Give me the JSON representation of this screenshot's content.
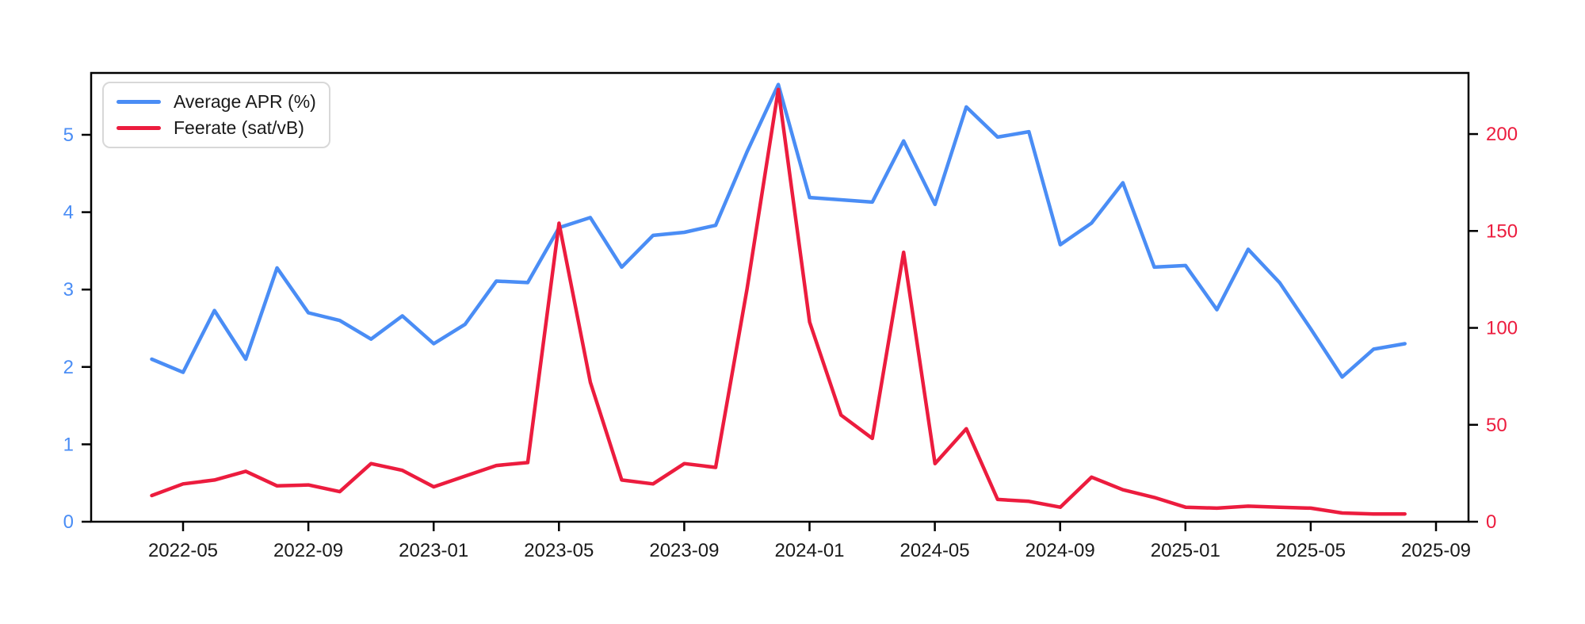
{
  "figure": {
    "background": "#ffffff",
    "legend": {
      "items": [
        {
          "label": "Average APR (%)",
          "color": "#4a8df5"
        },
        {
          "label": "Feerate (sat/vB)",
          "color": "#ec1c3e"
        }
      ]
    },
    "axes": {
      "x": {
        "tick_labels": [
          "2022-05",
          "2022-09",
          "2023-01",
          "2023-05",
          "2023-09",
          "2024-01",
          "2024-05",
          "2024-09",
          "2025-01",
          "2025-05",
          "2025-09"
        ],
        "label_color": "#1a1a1a"
      },
      "y_left": {
        "tick_labels": [
          "0",
          "1",
          "2",
          "3",
          "4",
          "5"
        ],
        "label_color": "#4a8df5",
        "lim": [
          0,
          5.8
        ]
      },
      "y_right": {
        "tick_labels": [
          "0",
          "50",
          "100",
          "150",
          "200"
        ],
        "label_color": "#ec1c3e",
        "lim": [
          0,
          231
        ]
      }
    }
  },
  "chart_data": {
    "type": "line",
    "title": "",
    "xlabel": "",
    "ylabel_left": "Average APR (%)",
    "ylabel_right": "Feerate (sat/vB)",
    "grid": false,
    "legend_position": "upper left",
    "x": [
      "2022-04",
      "2022-05",
      "2022-06",
      "2022-07",
      "2022-08",
      "2022-09",
      "2022-10",
      "2022-11",
      "2022-12",
      "2023-01",
      "2023-02",
      "2023-03",
      "2023-04",
      "2023-05",
      "2023-06",
      "2023-07",
      "2023-08",
      "2023-09",
      "2023-10",
      "2023-11",
      "2023-12",
      "2024-01",
      "2024-02",
      "2024-03",
      "2024-04",
      "2024-05",
      "2024-06",
      "2024-07",
      "2024-08",
      "2024-09",
      "2024-10",
      "2024-11",
      "2024-12",
      "2025-01",
      "2025-02",
      "2025-03",
      "2025-04",
      "2025-05",
      "2025-06",
      "2025-07",
      "2025-08"
    ],
    "series": [
      {
        "name": "Average APR (%)",
        "axis": "left",
        "color": "#4a8df5",
        "values": [
          2.1,
          1.93,
          2.73,
          2.1,
          3.28,
          2.7,
          2.6,
          2.36,
          2.66,
          2.3,
          2.55,
          3.11,
          3.09,
          3.8,
          3.93,
          3.29,
          3.7,
          3.74,
          3.83,
          4.78,
          5.65,
          4.19,
          4.16,
          4.13,
          4.92,
          4.1,
          5.36,
          4.97,
          5.04,
          3.58,
          3.86,
          4.38,
          3.29,
          3.31,
          2.74,
          3.52,
          3.09,
          2.49,
          1.87,
          2.23,
          2.3
        ]
      },
      {
        "name": "Feerate (sat/vB)",
        "axis": "right",
        "color": "#ec1c3e",
        "values": [
          13.5,
          19.5,
          21.5,
          26,
          18.5,
          19,
          15.5,
          30,
          26.5,
          18,
          23.5,
          29,
          30.5,
          154,
          72,
          21.5,
          19.5,
          30,
          28,
          120,
          223,
          103,
          55,
          43,
          139,
          30,
          48,
          11.5,
          10.5,
          7.5,
          23,
          16.5,
          12.5,
          7.5,
          7,
          8,
          7.5,
          7,
          4.5,
          4,
          4
        ]
      }
    ]
  }
}
